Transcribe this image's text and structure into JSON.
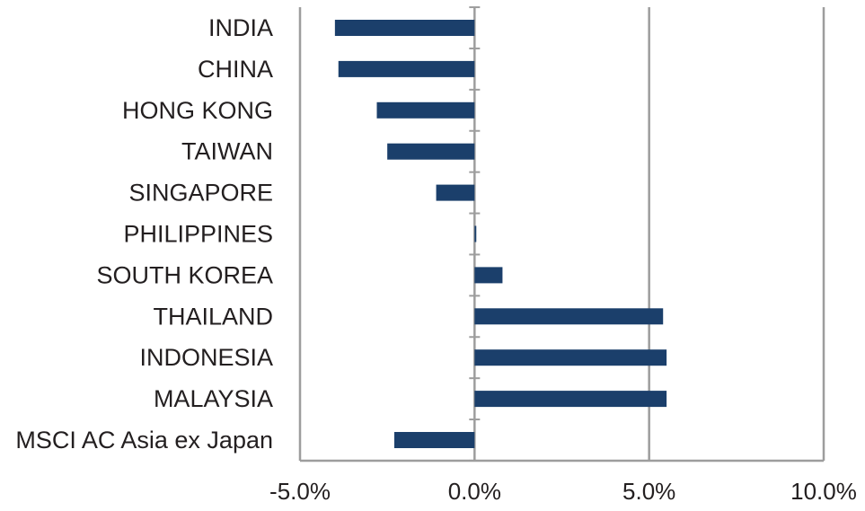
{
  "chart_data": {
    "type": "bar",
    "orientation": "horizontal",
    "categories": [
      "INDIA",
      "CHINA",
      "HONG KONG",
      "TAIWAN",
      "SINGAPORE",
      "PHILIPPINES",
      "SOUTH KOREA",
      "THAILAND",
      "INDONESIA",
      "MALAYSIA",
      "MSCI AC Asia ex Japan"
    ],
    "values": [
      -4.0,
      -3.9,
      -2.8,
      -2.5,
      -1.1,
      0.05,
      0.8,
      5.4,
      5.5,
      5.5,
      -2.3
    ],
    "title": "",
    "xlabel": "",
    "ylabel": "",
    "xlim": [
      -5.0,
      10.0
    ],
    "x_ticks": [
      -5.0,
      0.0,
      5.0,
      10.0
    ],
    "x_tick_labels": [
      "-5.0%",
      "0.0%",
      "5.0%",
      "10.0%"
    ],
    "grid": "vertical",
    "legend": "none",
    "bar_color": "#1b3f6b",
    "grid_color": "#9d9d9d",
    "axis_color": "#9d9d9d"
  }
}
